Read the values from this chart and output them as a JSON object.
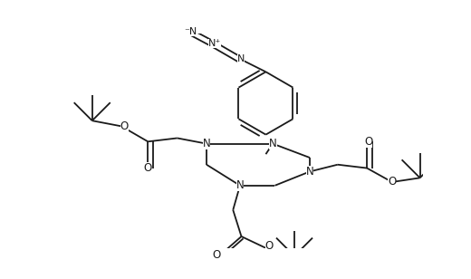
{
  "background": "#ffffff",
  "line_color": "#1a1a1a",
  "line_width": 1.3,
  "figsize": [
    5.2,
    3.08
  ],
  "dpi": 100,
  "xlim": [
    0,
    520
  ],
  "ylim": [
    0,
    308
  ]
}
